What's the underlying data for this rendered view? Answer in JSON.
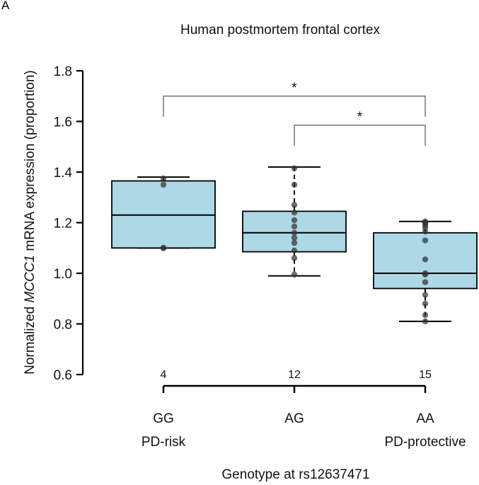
{
  "panel_label": "A",
  "chart_data": {
    "type": "box",
    "title": "Human postmortem frontal cortex",
    "ylabel_prefix": "Normalized ",
    "ylabel_italic": "MCCC1",
    "ylabel_suffix": " mRNA expression (proportion)",
    "xlabel": "Genotype at rs12637471",
    "ylim": [
      0.6,
      1.8
    ],
    "yticks": [
      "0.6",
      "0.8",
      "1.0",
      "1.2",
      "1.4",
      "1.6",
      "1.8"
    ],
    "groups": [
      {
        "name": "GG",
        "sublabel": "PD-risk",
        "n": "4",
        "whisker_low": 1.1,
        "q1": 1.1,
        "median": 1.23,
        "q3": 1.365,
        "whisker_high": 1.38,
        "points": [
          1.1,
          1.1,
          1.35,
          1.375
        ]
      },
      {
        "name": "AG",
        "sublabel": "",
        "n": "12",
        "whisker_low": 0.99,
        "q1": 1.085,
        "median": 1.16,
        "q3": 1.245,
        "whisker_high": 1.42,
        "points": [
          0.995,
          1.06,
          1.09,
          1.12,
          1.14,
          1.16,
          1.185,
          1.21,
          1.24,
          1.27,
          1.35,
          1.415
        ]
      },
      {
        "name": "AA",
        "sublabel": "PD-protective",
        "n": "15",
        "whisker_low": 0.81,
        "q1": 0.94,
        "median": 1.0,
        "q3": 1.16,
        "whisker_high": 1.205,
        "points": [
          0.81,
          0.835,
          0.88,
          0.915,
          0.965,
          0.995,
          1.0,
          1.055,
          1.13,
          1.165,
          1.18,
          1.19,
          1.2,
          1.205,
          1.2
        ]
      }
    ],
    "significance": [
      {
        "from": 0,
        "to": 2,
        "label": "*",
        "y": 1.7
      },
      {
        "from": 1,
        "to": 2,
        "label": "*",
        "y": 1.585
      }
    ],
    "colors": {
      "box_fill": "#add8e6",
      "stroke": "#000000",
      "point": "#333333"
    }
  }
}
